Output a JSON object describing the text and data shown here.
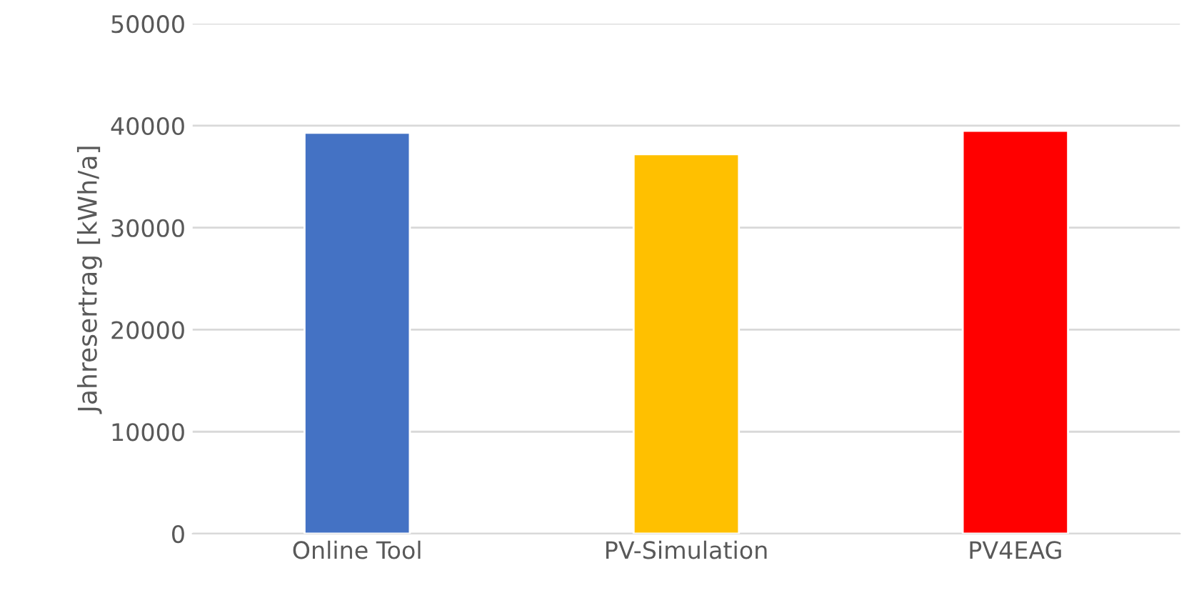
{
  "chart_data": {
    "type": "bar",
    "ylabel": "Jahresertrag [kWh/a]",
    "categories": [
      "Online Tool",
      "PV-Simulation",
      "PV4EAG"
    ],
    "values": [
      39300,
      37200,
      39500
    ],
    "colors": [
      "#4472c4",
      "#ffc000",
      "#ff0000"
    ],
    "ylim": [
      0,
      50000
    ],
    "yticks": [
      0,
      10000,
      20000,
      30000,
      40000,
      50000
    ],
    "grid": "y"
  }
}
